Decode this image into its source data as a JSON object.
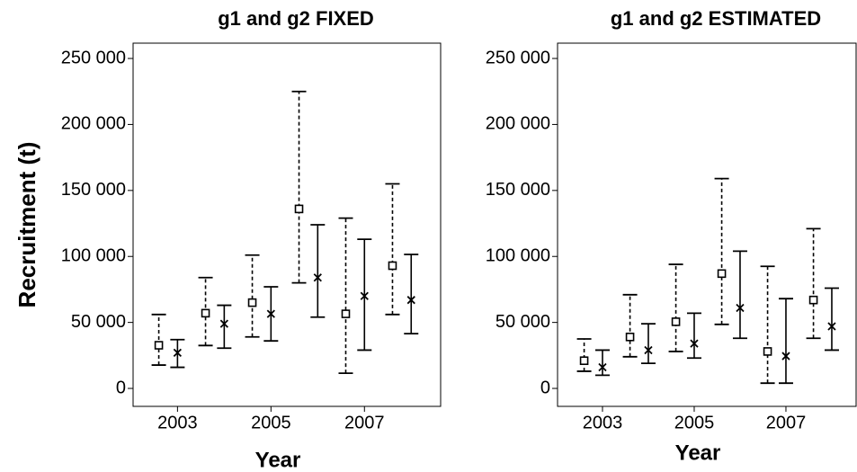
{
  "chart_data": [
    {
      "type": "errorbar",
      "title": "g1 and g2 FIXED",
      "xlabel": "Year",
      "ylabel": "Recruitment (t)",
      "x": [
        2003,
        2004,
        2005,
        2006,
        2007,
        2008
      ],
      "xlim": [
        2002.05,
        2008.63
      ],
      "xticks": [
        2003,
        2005,
        2007
      ],
      "ylim": [
        -13600,
        261600
      ],
      "yticks": [
        {
          "value": 0,
          "label": "0"
        },
        {
          "value": 50000,
          "label": "50 000"
        },
        {
          "value": 100000,
          "label": "100 000"
        },
        {
          "value": 150000,
          "label": "150 000"
        },
        {
          "value": 200000,
          "label": "200 000"
        },
        {
          "value": 250000,
          "label": "250 000"
        }
      ],
      "series": [
        {
          "marker": "square",
          "linestyle": "dashed",
          "color": "#000000",
          "values": [
            32700,
            57000,
            65000,
            136000,
            56500,
            93000
          ],
          "low": [
            17700,
            32500,
            39000,
            80000,
            11500,
            56000
          ],
          "high": [
            56000,
            84000,
            101000,
            225000,
            129000,
            155000
          ]
        },
        {
          "marker": "cross",
          "linestyle": "solid",
          "color": "#000000",
          "values": [
            27000,
            49000,
            56500,
            84000,
            70000,
            67000
          ],
          "low": [
            16000,
            30500,
            36000,
            54000,
            29000,
            41500
          ],
          "high": [
            37000,
            63000,
            77000,
            124000,
            113000,
            101500
          ]
        }
      ]
    },
    {
      "type": "errorbar",
      "title": "g1 and g2 ESTIMATED",
      "xlabel": "Year",
      "x": [
        2003,
        2004,
        2005,
        2006,
        2007,
        2008
      ],
      "xlim": [
        2002.02,
        2008.53
      ],
      "xticks": [
        2003,
        2005,
        2007
      ],
      "ylim": [
        -13600,
        261600
      ],
      "yticks": [
        {
          "value": 0,
          "label": "0"
        },
        {
          "value": 50000,
          "label": "50 000"
        },
        {
          "value": 100000,
          "label": "100 000"
        },
        {
          "value": 150000,
          "label": "150 000"
        },
        {
          "value": 200000,
          "label": "200 000"
        },
        {
          "value": 250000,
          "label": "250 000"
        }
      ],
      "series": [
        {
          "marker": "square",
          "linestyle": "dashed",
          "color": "#000000",
          "values": [
            21000,
            39000,
            50500,
            87000,
            28000,
            67000
          ],
          "low": [
            13000,
            24000,
            28000,
            48500,
            4000,
            38000
          ],
          "high": [
            37500,
            71000,
            94000,
            159000,
            92500,
            121000
          ]
        },
        {
          "marker": "cross",
          "linestyle": "solid",
          "color": "#000000",
          "values": [
            16000,
            29000,
            34000,
            61000,
            24500,
            47000
          ],
          "low": [
            10000,
            19000,
            23000,
            38000,
            4000,
            29000
          ],
          "high": [
            29000,
            49000,
            57000,
            104000,
            68000,
            76000
          ]
        }
      ]
    }
  ]
}
